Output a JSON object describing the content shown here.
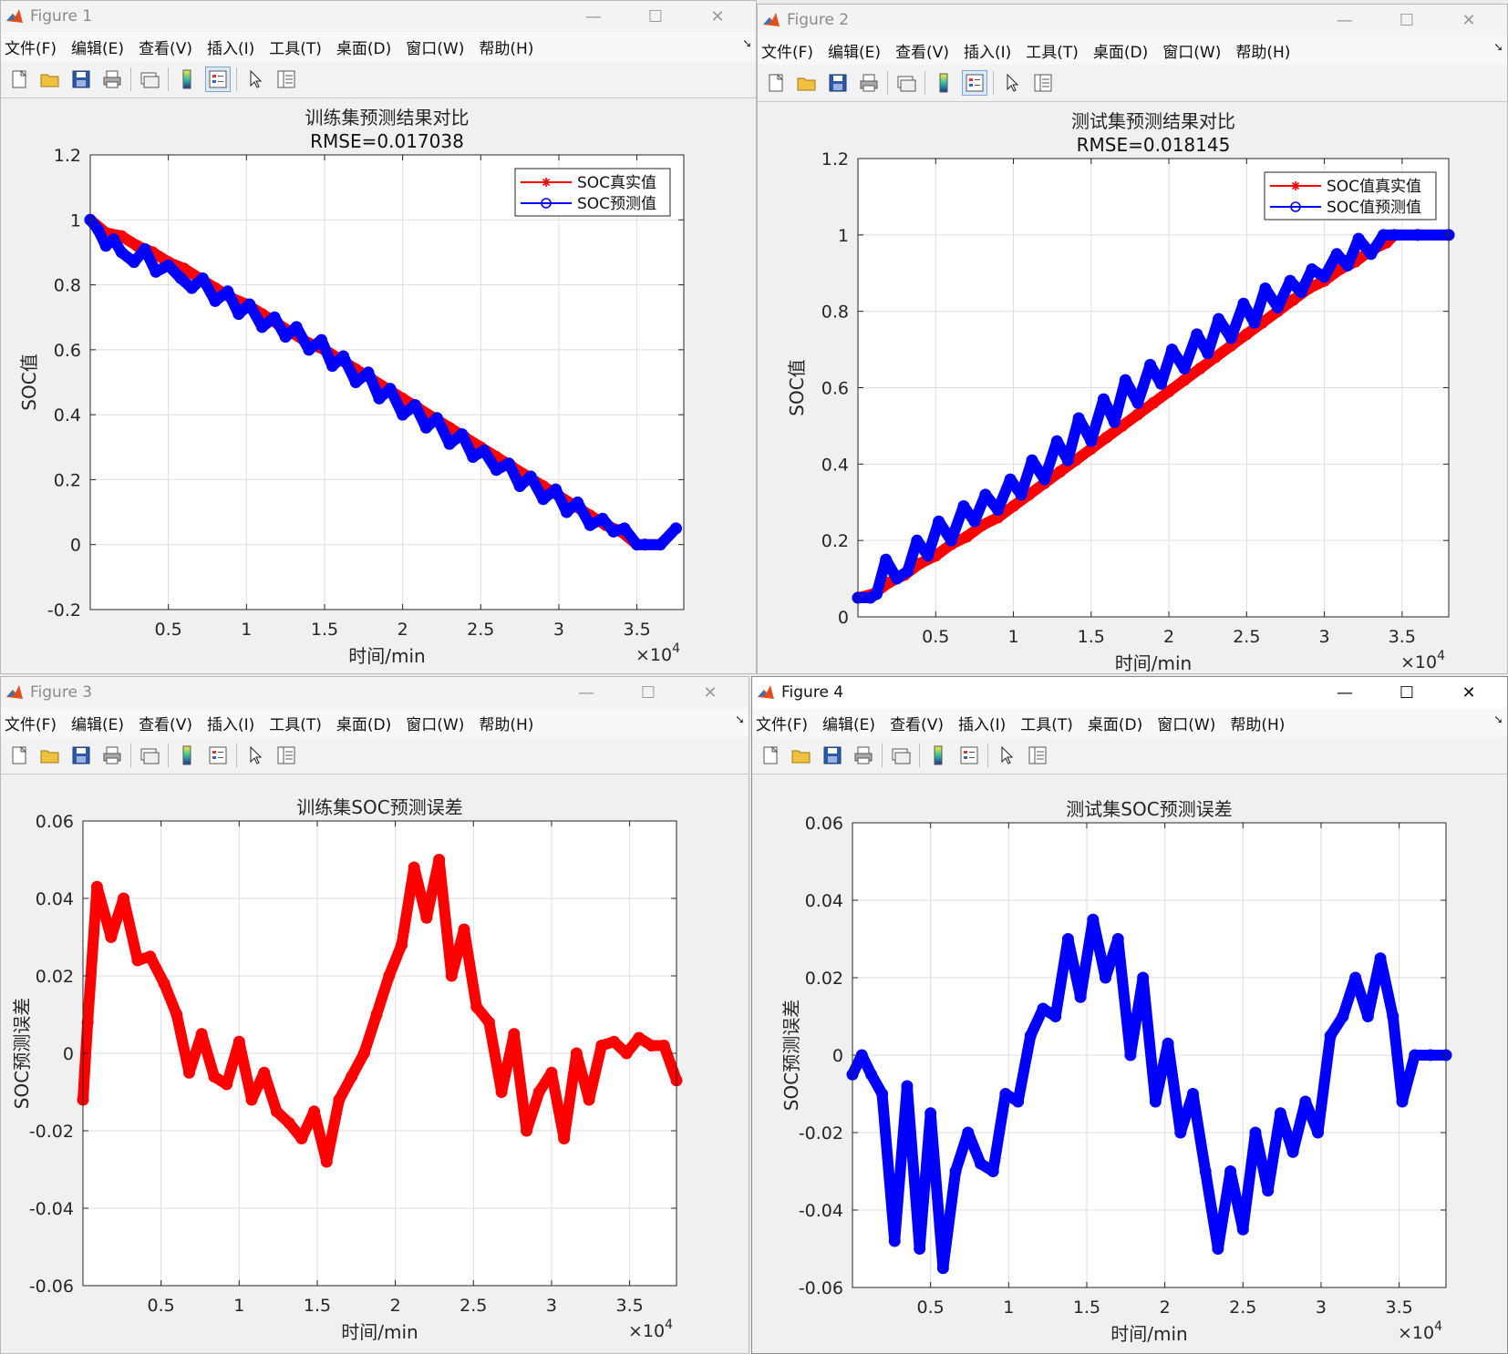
{
  "menus": [
    "文件(F)",
    "编辑(E)",
    "查看(V)",
    "插入(I)",
    "工具(T)",
    "桌面(D)",
    "窗口(W)",
    "帮助(H)"
  ],
  "toolbar_icons": [
    "new-figure-icon",
    "open-file-icon",
    "save-icon",
    "print-icon",
    "link-plot-icon",
    "colorbar-icon",
    "legend-icon",
    "pointer-icon",
    "property-inspector-icon"
  ],
  "colors": {
    "red": "#ff0000",
    "blue": "#0000ff",
    "grid": "#dedede"
  },
  "windows": [
    {
      "title": "Figure 1",
      "active": false,
      "chart_data": {
        "type": "line",
        "title": "训练集预测结果对比",
        "subtitle": "RMSE=0.017038",
        "xlabel": "时间/min",
        "ylabel": "SOC值",
        "xlim": [
          0,
          38000
        ],
        "ylim": [
          -0.2,
          1.2
        ],
        "xticks": [
          5000,
          10000,
          15000,
          20000,
          25000,
          30000,
          35000
        ],
        "xtick_labels": [
          "0.5",
          "1",
          "1.5",
          "2",
          "2.5",
          "3",
          "3.5"
        ],
        "yticks": [
          -0.2,
          0,
          0.2,
          0.4,
          0.6,
          0.8,
          1,
          1.2
        ],
        "ytick_labels": [
          "-0.2",
          "0",
          "0.2",
          "0.4",
          "0.6",
          "0.8",
          "1",
          "1.2"
        ],
        "x_exponent": "10",
        "x_exponent_power": "4",
        "grid": true,
        "legend": {
          "position": "top-right",
          "entries": [
            {
              "label": "SOC真实值",
              "color": "#ff0000",
              "marker": "*"
            },
            {
              "label": "SOC预测值",
              "color": "#0000ff",
              "marker": "o"
            }
          ]
        },
        "series": [
          {
            "name": "SOC真实值",
            "color": "#ff0000",
            "marker": "*",
            "x": [
              0,
              1000,
              2000,
              3000,
              4000,
              5000,
              6000,
              7000,
              8000,
              9000,
              10000,
              11000,
              12000,
              13000,
              14000,
              15000,
              16000,
              17000,
              18000,
              19000,
              20000,
              21000,
              22000,
              23000,
              24000,
              25000,
              26000,
              27000,
              28000,
              29000,
              30000,
              31000,
              32000,
              33000,
              34000,
              35000,
              35500,
              36500,
              37500
            ],
            "y": [
              1.0,
              0.96,
              0.95,
              0.92,
              0.9,
              0.87,
              0.85,
              0.82,
              0.79,
              0.76,
              0.74,
              0.71,
              0.68,
              0.65,
              0.62,
              0.6,
              0.57,
              0.54,
              0.51,
              0.48,
              0.45,
              0.42,
              0.39,
              0.36,
              0.33,
              0.3,
              0.27,
              0.24,
              0.21,
              0.18,
              0.15,
              0.12,
              0.09,
              0.06,
              0.04,
              0.0,
              0.0,
              0.0,
              0.05
            ]
          },
          {
            "name": "SOC预测值",
            "color": "#0000ff",
            "marker": "o",
            "x": [
              0,
              500,
              1000,
              1500,
              2000,
              2800,
              3500,
              4200,
              5000,
              5800,
              6500,
              7200,
              8000,
              8800,
              9500,
              10200,
              11000,
              11800,
              12500,
              13200,
              14000,
              14800,
              15500,
              16200,
              17000,
              17800,
              18500,
              19200,
              20000,
              20800,
              21500,
              22200,
              23000,
              23800,
              24500,
              25200,
              26000,
              26800,
              27500,
              28200,
              29000,
              29800,
              30500,
              31200,
              32000,
              32800,
              33500,
              34200,
              35000,
              35500,
              36500,
              37500
            ],
            "y": [
              1.0,
              0.97,
              0.92,
              0.94,
              0.9,
              0.87,
              0.91,
              0.84,
              0.86,
              0.82,
              0.79,
              0.82,
              0.75,
              0.78,
              0.71,
              0.74,
              0.67,
              0.7,
              0.64,
              0.67,
              0.6,
              0.63,
              0.55,
              0.58,
              0.5,
              0.53,
              0.45,
              0.48,
              0.4,
              0.43,
              0.36,
              0.39,
              0.31,
              0.34,
              0.27,
              0.29,
              0.23,
              0.25,
              0.18,
              0.21,
              0.14,
              0.17,
              0.1,
              0.13,
              0.06,
              0.08,
              0.04,
              0.05,
              0.0,
              0.0,
              0.0,
              0.05
            ]
          }
        ]
      }
    },
    {
      "title": "Figure 2",
      "active": false,
      "chart_data": {
        "type": "line",
        "title": "测试集预测结果对比",
        "subtitle": "RMSE=0.018145",
        "xlabel": "时间/min",
        "ylabel": "SOC值",
        "xlim": [
          0,
          38000
        ],
        "ylim": [
          0,
          1.2
        ],
        "xticks": [
          5000,
          10000,
          15000,
          20000,
          25000,
          30000,
          35000
        ],
        "xtick_labels": [
          "0.5",
          "1",
          "1.5",
          "2",
          "2.5",
          "3",
          "3.5"
        ],
        "yticks": [
          0,
          0.2,
          0.4,
          0.6,
          0.8,
          1,
          1.2
        ],
        "ytick_labels": [
          "0",
          "0.2",
          "0.4",
          "0.6",
          "0.8",
          "1",
          "1.2"
        ],
        "x_exponent": "10",
        "x_exponent_power": "4",
        "grid": true,
        "legend": {
          "position": "top-right",
          "entries": [
            {
              "label": "SOC值真实值",
              "color": "#ff0000",
              "marker": "*"
            },
            {
              "label": "SOC值预测值",
              "color": "#0000ff",
              "marker": "o"
            }
          ]
        },
        "series": [
          {
            "name": "SOC值真实值",
            "color": "#ff0000",
            "marker": "*",
            "x": [
              0,
              1000,
              2000,
              3000,
              4000,
              5000,
              6000,
              7000,
              8000,
              9000,
              10000,
              11000,
              12000,
              13000,
              14000,
              15000,
              16000,
              17000,
              18000,
              19000,
              20000,
              21000,
              22000,
              23000,
              24000,
              25000,
              26000,
              27000,
              28000,
              29000,
              30000,
              31000,
              32000,
              33000,
              34000,
              34500,
              36000,
              38000
            ],
            "y": [
              0.05,
              0.06,
              0.09,
              0.11,
              0.14,
              0.16,
              0.19,
              0.21,
              0.24,
              0.26,
              0.29,
              0.32,
              0.35,
              0.38,
              0.41,
              0.44,
              0.47,
              0.5,
              0.53,
              0.56,
              0.59,
              0.62,
              0.65,
              0.68,
              0.71,
              0.74,
              0.77,
              0.8,
              0.83,
              0.86,
              0.88,
              0.91,
              0.93,
              0.96,
              0.98,
              1.0,
              1.0,
              1.0
            ]
          },
          {
            "name": "SOC值预测值",
            "color": "#0000ff",
            "marker": "o",
            "x": [
              0,
              800,
              1200,
              1800,
              2500,
              3200,
              3800,
              4500,
              5200,
              6000,
              6800,
              7500,
              8200,
              9000,
              9800,
              10500,
              11200,
              12000,
              12800,
              13500,
              14200,
              15000,
              15800,
              16500,
              17200,
              18000,
              18800,
              19500,
              20200,
              21000,
              21800,
              22500,
              23200,
              24000,
              24800,
              25500,
              26200,
              27000,
              27800,
              28500,
              29200,
              30000,
              30800,
              31500,
              32200,
              33000,
              33800,
              34500,
              36000,
              38000
            ],
            "y": [
              0.05,
              0.05,
              0.06,
              0.15,
              0.1,
              0.12,
              0.2,
              0.16,
              0.25,
              0.2,
              0.29,
              0.25,
              0.32,
              0.28,
              0.36,
              0.32,
              0.41,
              0.36,
              0.46,
              0.41,
              0.52,
              0.46,
              0.57,
              0.51,
              0.62,
              0.56,
              0.66,
              0.61,
              0.7,
              0.65,
              0.74,
              0.69,
              0.78,
              0.73,
              0.82,
              0.77,
              0.86,
              0.81,
              0.88,
              0.85,
              0.91,
              0.89,
              0.95,
              0.92,
              0.99,
              0.95,
              1.0,
              1.0,
              1.0,
              1.0
            ]
          }
        ]
      }
    },
    {
      "title": "Figure 3",
      "active": false,
      "chart_data": {
        "type": "line",
        "title": "训练集SOC预测误差",
        "subtitle": "",
        "xlabel": "时间/min",
        "ylabel": "SOC预测误差",
        "xlim": [
          0,
          38000
        ],
        "ylim": [
          -0.06,
          0.06
        ],
        "xticks": [
          5000,
          10000,
          15000,
          20000,
          25000,
          30000,
          35000
        ],
        "xtick_labels": [
          "0.5",
          "1",
          "1.5",
          "2",
          "2.5",
          "3",
          "3.5"
        ],
        "yticks": [
          -0.06,
          -0.04,
          -0.02,
          0,
          0.02,
          0.04,
          0.06
        ],
        "ytick_labels": [
          "-0.06",
          "-0.04",
          "-0.02",
          "0",
          "0.02",
          "0.04",
          "0.06"
        ],
        "x_exponent": "10",
        "x_exponent_power": "4",
        "grid": true,
        "series": [
          {
            "color": "#ff0000",
            "marker": "*",
            "x": [
              0,
              300,
              900,
              1800,
              2600,
              3500,
              4300,
              5200,
              6000,
              6800,
              7600,
              8400,
              9200,
              10000,
              10800,
              11600,
              12400,
              13200,
              14000,
              14800,
              15600,
              16400,
              17200,
              18000,
              18800,
              19600,
              20400,
              21200,
              22000,
              22800,
              23600,
              24400,
              25200,
              26000,
              26800,
              27600,
              28400,
              29200,
              30000,
              30800,
              31600,
              32400,
              33200,
              34000,
              34800,
              35600,
              36400,
              37200,
              38000
            ],
            "y": [
              -0.012,
              0.008,
              0.043,
              0.03,
              0.04,
              0.024,
              0.025,
              0.018,
              0.01,
              -0.005,
              0.005,
              -0.006,
              -0.008,
              0.003,
              -0.012,
              -0.005,
              -0.015,
              -0.018,
              -0.022,
              -0.015,
              -0.028,
              -0.012,
              -0.006,
              0.0,
              0.01,
              0.02,
              0.028,
              0.048,
              0.035,
              0.05,
              0.02,
              0.032,
              0.012,
              0.008,
              -0.01,
              0.005,
              -0.02,
              -0.01,
              -0.005,
              -0.022,
              0.0,
              -0.012,
              0.002,
              0.003,
              0.0,
              0.004,
              0.002,
              0.002,
              -0.007
            ]
          }
        ]
      }
    },
    {
      "title": "Figure 4",
      "active": true,
      "chart_data": {
        "type": "line",
        "title": "测试集SOC预测误差",
        "subtitle": "",
        "xlabel": "时间/min",
        "ylabel": "SOC预测误差",
        "xlim": [
          0,
          38000
        ],
        "ylim": [
          -0.06,
          0.06
        ],
        "xticks": [
          5000,
          10000,
          15000,
          20000,
          25000,
          30000,
          35000
        ],
        "xtick_labels": [
          "0.5",
          "1",
          "1.5",
          "2",
          "2.5",
          "3",
          "3.5"
        ],
        "yticks": [
          -0.06,
          -0.04,
          -0.02,
          0,
          0.02,
          0.04,
          0.06
        ],
        "ytick_labels": [
          "-0.06",
          "-0.04",
          "-0.02",
          "0",
          "0.02",
          "0.04",
          "0.06"
        ],
        "x_exponent": "10",
        "x_exponent_power": "4",
        "grid": true,
        "series": [
          {
            "color": "#0000ff",
            "marker": "o",
            "x": [
              0,
              600,
              1200,
              1900,
              2700,
              3500,
              4300,
              5000,
              5800,
              6600,
              7400,
              8200,
              9000,
              9800,
              10600,
              11400,
              12200,
              13000,
              13800,
              14600,
              15400,
              16200,
              17000,
              17800,
              18600,
              19400,
              20200,
              21000,
              21800,
              22600,
              23400,
              24200,
              25000,
              25800,
              26600,
              27400,
              28200,
              29000,
              29800,
              30600,
              31400,
              32200,
              33000,
              33800,
              34600,
              35200,
              36000,
              37000,
              38000
            ],
            "y": [
              -0.005,
              0.0,
              -0.005,
              -0.01,
              -0.048,
              -0.008,
              -0.05,
              -0.015,
              -0.055,
              -0.03,
              -0.02,
              -0.028,
              -0.03,
              -0.01,
              -0.012,
              0.005,
              0.012,
              0.01,
              0.03,
              0.015,
              0.035,
              0.02,
              0.03,
              0.0,
              0.02,
              -0.012,
              0.003,
              -0.02,
              -0.01,
              -0.03,
              -0.05,
              -0.03,
              -0.045,
              -0.02,
              -0.035,
              -0.015,
              -0.025,
              -0.012,
              -0.02,
              0.005,
              0.01,
              0.02,
              0.01,
              0.025,
              0.01,
              -0.012,
              0.0,
              0.0,
              0.0
            ]
          }
        ]
      }
    }
  ]
}
